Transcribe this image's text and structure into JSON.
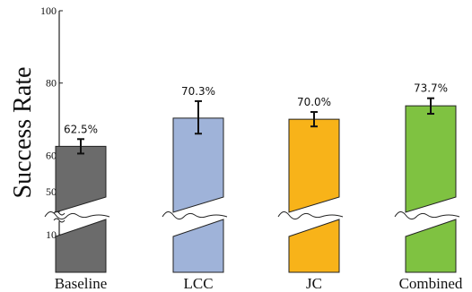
{
  "chart_data": {
    "type": "bar",
    "ylabel": "Success Rate",
    "ylim": [
      0,
      100
    ],
    "axis_break": [
      15,
      45
    ],
    "y_ticks": [
      10,
      50,
      60,
      80,
      100
    ],
    "categories": [
      "Baseline",
      "LCC",
      "JC",
      "Combined"
    ],
    "values": [
      62.5,
      70.3,
      70.0,
      73.7
    ],
    "value_labels": [
      "62.5%",
      "70.3%",
      "70.0%",
      "73.7%"
    ],
    "error_bars": [
      {
        "low": 60.5,
        "high": 64.5
      },
      {
        "low": 66.0,
        "high": 75.0
      },
      {
        "low": 68.0,
        "high": 72.0
      },
      {
        "low": 71.5,
        "high": 75.8
      }
    ],
    "colors": [
      "#6b6b6b",
      "#9fb3d9",
      "#f8b319",
      "#7fc241"
    ],
    "grid": false,
    "legend": "none"
  }
}
